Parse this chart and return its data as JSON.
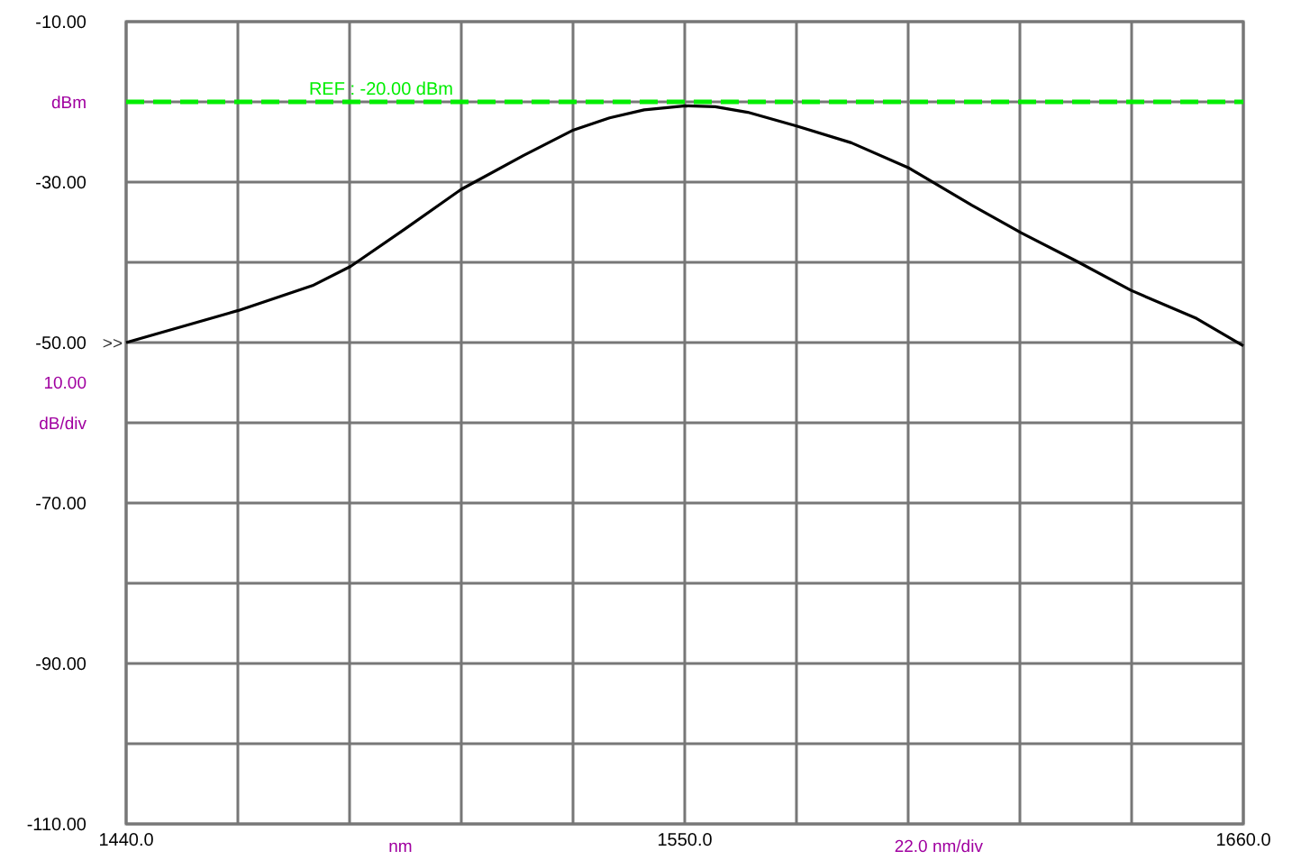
{
  "chart_data": {
    "type": "line",
    "x": [
      1440,
      1462.1,
      1476.7,
      1484.2,
      1495,
      1506,
      1518.2,
      1528.1,
      1535.2,
      1542,
      1550.2,
      1556,
      1562.4,
      1572,
      1582.8,
      1594,
      1606.6,
      1616.2,
      1627,
      1637.9,
      1650.8,
      1660
    ],
    "series": [
      {
        "color": "#000000",
        "values": [
          -50.0,
          -46.0,
          -42.9,
          -40.5,
          -35.8,
          -30.9,
          -26.7,
          -23.5,
          -22.0,
          -21.0,
          -20.5,
          -20.6,
          -21.3,
          -23.0,
          -25.1,
          -28.2,
          -32.9,
          -36.3,
          -39.8,
          -43.5,
          -47.0,
          -50.4
        ]
      }
    ],
    "xlim": [
      1440,
      1660
    ],
    "xticks": [
      {
        "value": 1440,
        "label": "1440.0"
      },
      {
        "value": 1462,
        "label": null
      },
      {
        "value": 1484,
        "label": null
      },
      {
        "value": 1506,
        "label": null
      },
      {
        "value": 1528,
        "label": null
      },
      {
        "value": 1550,
        "label": "1550.0"
      },
      {
        "value": 1572,
        "label": null
      },
      {
        "value": 1594,
        "label": null
      },
      {
        "value": 1616,
        "label": null
      },
      {
        "value": 1638,
        "label": null
      },
      {
        "value": 1660,
        "label": "1660.0"
      }
    ],
    "ylim": [
      -110,
      -10
    ],
    "yticks": [
      {
        "value": -110,
        "label": "-110.00"
      },
      {
        "value": -100,
        "label": null
      },
      {
        "value": -90,
        "label": "-90.00"
      },
      {
        "value": -80,
        "label": null
      },
      {
        "value": -70,
        "label": "-70.00"
      },
      {
        "value": -60,
        "label": null
      },
      {
        "value": -50,
        "label": "-50.00"
      },
      {
        "value": -40,
        "label": null
      },
      {
        "value": -30,
        "label": "-30.00"
      },
      {
        "value": -20,
        "label": null
      },
      {
        "value": -10,
        "label": "-10.00"
      }
    ],
    "grid": true,
    "marker": "none",
    "line_style": "solid",
    "ref_lines": [
      {
        "axis": "y",
        "value": -20,
        "label": "REF : -20.00 dBm",
        "color": "#00ee00",
        "line_style": "dashed"
      }
    ],
    "annotations": [
      "dBm",
      "10.00",
      "dB/div",
      "nm",
      "22.0 nm/div",
      ">>"
    ]
  }
}
